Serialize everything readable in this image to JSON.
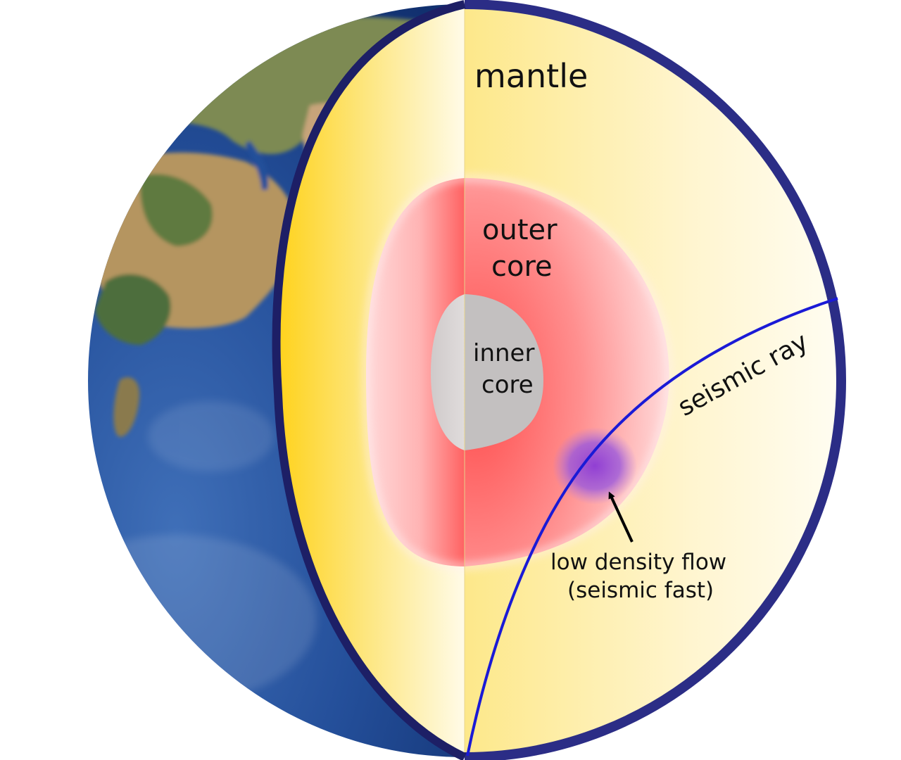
{
  "labels": {
    "mantle": "mantle",
    "outer_core_line1": "outer",
    "outer_core_line2": "core",
    "inner_core_line1": "inner",
    "inner_core_line2": "core",
    "seismic_ray": "seismic ray",
    "flow_line1": "low density flow",
    "flow_line2": "(seismic fast)"
  },
  "colors": {
    "crust_rim": "#2b2d86",
    "mantle_yellow": "#fde57a",
    "mantle_pale": "#fffbe8",
    "outer_core": "#ff6f6f",
    "outer_core_pale": "#ffe3e3",
    "inner_core": "#c3c0c0",
    "seismic_ray": "#1a1ad6",
    "flow_blob": "#8b3ad6",
    "ocean": "#244f9a",
    "land": "#8a7a4e"
  },
  "icons": {
    "earth": "earth-globe-icon",
    "arrow": "arrow-pointer-icon"
  }
}
